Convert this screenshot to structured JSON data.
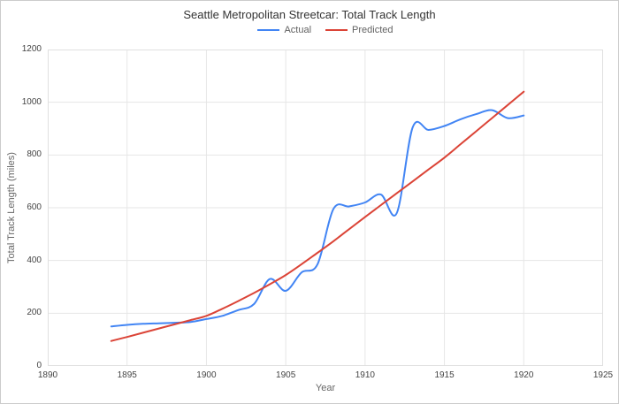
{
  "card": {
    "background": "#ffffff",
    "border_color": "#cccccc"
  },
  "chart_data": {
    "type": "line",
    "title": "Seattle Metropolitan Streetcar: Total Track Length",
    "xlabel": "Year",
    "ylabel": "Total Track Length (miles)",
    "xlim": [
      1890,
      1925
    ],
    "ylim": [
      0,
      1200
    ],
    "x_ticks": [
      1890,
      1895,
      1900,
      1905,
      1910,
      1915,
      1920,
      1925
    ],
    "y_ticks": [
      0,
      200,
      400,
      600,
      800,
      1000,
      1200
    ],
    "grid": true,
    "grid_color": "#e6e6e6",
    "plot_border_color": "#e0e0e0",
    "legend_position": "top-center",
    "line_smoothing": true,
    "x": [
      1894,
      1895,
      1896,
      1897,
      1898,
      1899,
      1900,
      1901,
      1902,
      1903,
      1904,
      1905,
      1906,
      1907,
      1908,
      1909,
      1910,
      1911,
      1912,
      1913,
      1914,
      1915,
      1916,
      1917,
      1918,
      1919,
      1920
    ],
    "series": [
      {
        "name": "Actual",
        "color": "#4285f4",
        "values": [
          150,
          156,
          160,
          162,
          164,
          167,
          178,
          190,
          212,
          235,
          330,
          285,
          355,
          385,
          595,
          605,
          620,
          650,
          580,
          905,
          895,
          910,
          935,
          955,
          970,
          940,
          950
        ]
      },
      {
        "name": "Predicted",
        "color": "#db4437",
        "values": [
          95,
          110,
          126,
          142,
          158,
          174,
          190,
          217,
          246,
          277,
          310,
          345,
          386,
          429,
          473,
          519,
          565,
          610,
          655,
          700,
          745,
          790,
          840,
          890,
          940,
          990,
          1040
        ]
      }
    ]
  }
}
